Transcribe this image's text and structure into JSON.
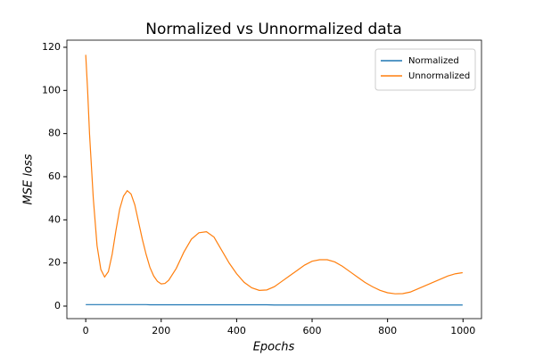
{
  "chart_data": {
    "type": "line",
    "title": "Normalized vs Unnormalized data",
    "xlabel": "Epochs",
    "ylabel": "MSE loss",
    "x": [
      0,
      5,
      10,
      20,
      30,
      40,
      50,
      60,
      70,
      80,
      90,
      100,
      110,
      120,
      130,
      140,
      150,
      160,
      170,
      180,
      190,
      200,
      210,
      220,
      240,
      260,
      280,
      300,
      320,
      340,
      360,
      380,
      400,
      420,
      440,
      460,
      480,
      500,
      520,
      540,
      560,
      580,
      600,
      620,
      640,
      660,
      680,
      700,
      720,
      740,
      760,
      780,
      800,
      820,
      840,
      860,
      880,
      900,
      920,
      940,
      960,
      980,
      999
    ],
    "series": [
      {
        "name": "Normalized",
        "color": "#1f77b4",
        "values": [
          0.7,
          0.7,
          0.7,
          0.7,
          0.7,
          0.7,
          0.7,
          0.7,
          0.7,
          0.7,
          0.7,
          0.7,
          0.7,
          0.7,
          0.7,
          0.7,
          0.7,
          0.7,
          0.6,
          0.6,
          0.6,
          0.6,
          0.6,
          0.6,
          0.6,
          0.6,
          0.6,
          0.6,
          0.6,
          0.6,
          0.6,
          0.6,
          0.6,
          0.6,
          0.6,
          0.6,
          0.6,
          0.5,
          0.5,
          0.5,
          0.5,
          0.5,
          0.5,
          0.5,
          0.5,
          0.5,
          0.5,
          0.5,
          0.5,
          0.5,
          0.5,
          0.5,
          0.5,
          0.5,
          0.5,
          0.5,
          0.5,
          0.5,
          0.5,
          0.5,
          0.5,
          0.5,
          0.5
        ]
      },
      {
        "name": "Unnormalized",
        "color": "#ff7f0e",
        "values": [
          116.5,
          100,
          80,
          50,
          28,
          17,
          13.5,
          16,
          24,
          35,
          45,
          51,
          53.5,
          52,
          47,
          39,
          31,
          24,
          18,
          14,
          11.5,
          10.3,
          10.5,
          12,
          17.5,
          25,
          31,
          34,
          34.5,
          32,
          26,
          20,
          15,
          11,
          8.5,
          7.3,
          7.5,
          9,
          11.5,
          14,
          16.5,
          19,
          20.8,
          21.5,
          21.5,
          20.5,
          18.5,
          16,
          13.5,
          11,
          9,
          7.3,
          6.2,
          5.7,
          5.8,
          6.5,
          8,
          9.5,
          11,
          12.5,
          14,
          15,
          15.5
        ]
      }
    ],
    "xlim": [
      -50,
      1049
    ],
    "xticks": [
      0,
      200,
      400,
      600,
      800,
      1000
    ],
    "ylim": [
      -5.8,
      123.3
    ],
    "yticks": [
      0,
      20,
      40,
      60,
      80,
      100,
      120
    ],
    "grid": false,
    "legend": "upper right"
  }
}
